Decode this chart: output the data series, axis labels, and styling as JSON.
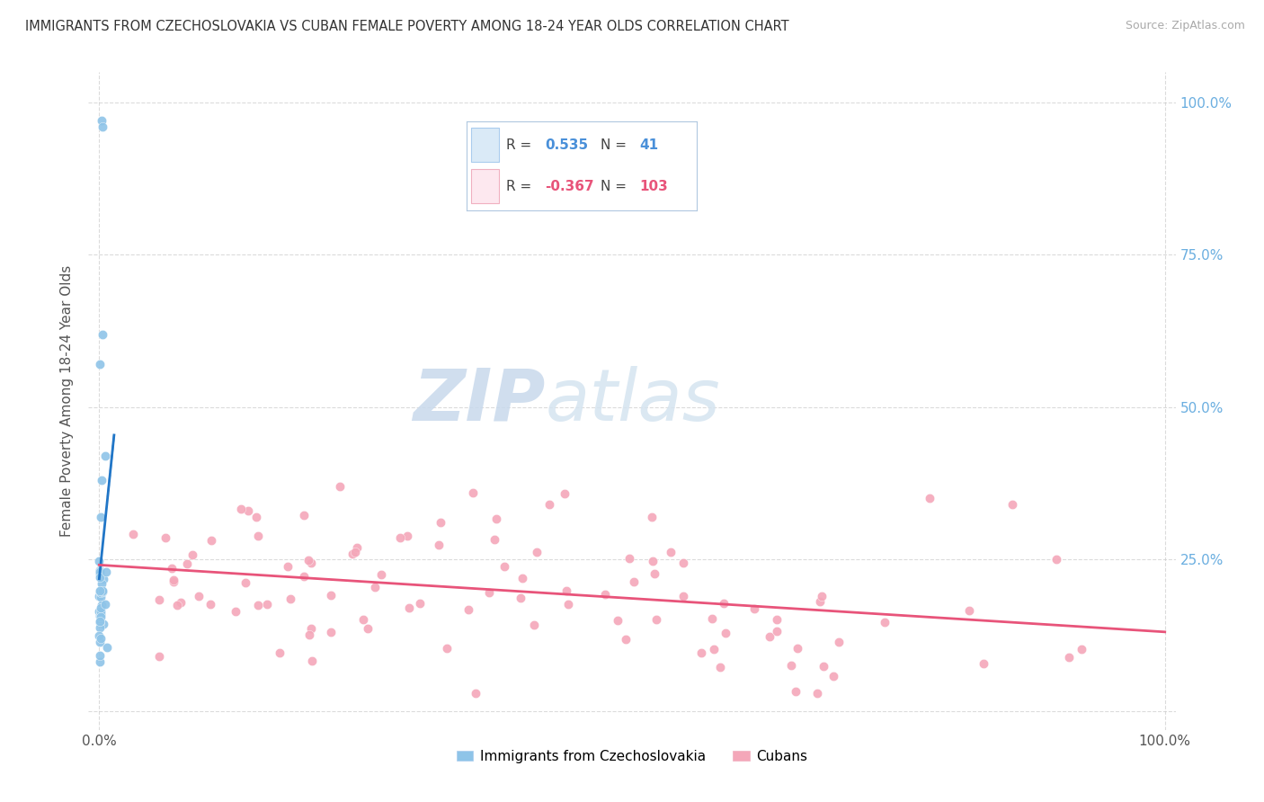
{
  "title": "IMMIGRANTS FROM CZECHOSLOVAKIA VS CUBAN FEMALE POVERTY AMONG 18-24 YEAR OLDS CORRELATION CHART",
  "source": "Source: ZipAtlas.com",
  "ylabel": "Female Poverty Among 18-24 Year Olds",
  "legend1_label": "Immigrants from Czechoslovakia",
  "legend2_label": "Cubans",
  "R1": 0.535,
  "N1": 41,
  "R2": -0.367,
  "N2": 103,
  "color_blue": "#8ec4e8",
  "color_pink": "#f4a7b9",
  "color_blue_line": "#2176c7",
  "color_pink_line": "#e8547a",
  "color_blue_text": "#4a90d9",
  "color_pink_text": "#e8547a",
  "color_blue_legend_bg": "#daeaf7",
  "color_pink_legend_bg": "#fde8ef",
  "watermark_zip_color": "#c5d8ed",
  "watermark_atlas_color": "#c5d8ed",
  "background_color": "#ffffff",
  "grid_color": "#cccccc",
  "right_tick_color": "#6aaee0",
  "xmin": 0.0,
  "xmax": 1.0,
  "ymin": 0.0,
  "ymax": 1.0,
  "yticks": [
    0.0,
    0.25,
    0.5,
    0.75,
    1.0
  ],
  "ytick_labels_right": [
    "",
    "25.0%",
    "50.0%",
    "75.0%",
    "100.0%"
  ]
}
